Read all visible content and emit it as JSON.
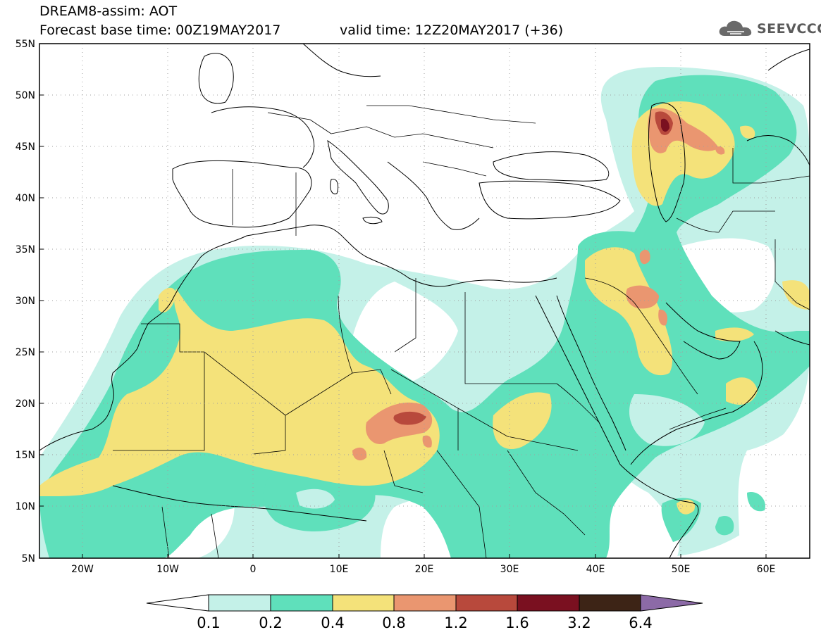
{
  "header": {
    "title_line1": "DREAM8-assim: AOT",
    "title_line2": "Forecast base time: 00Z19MAY2017",
    "valid_time": "valid time: 12Z20MAY2017 (+36)",
    "logo_text": "SEEVCCC",
    "logo_icon": "cloud-icon"
  },
  "map": {
    "variable": "AOT",
    "projection": "lat-lon",
    "lon_range": [
      -25,
      65
    ],
    "lat_range": [
      5,
      55
    ],
    "lat_labels": [
      "55N",
      "50N",
      "45N",
      "40N",
      "35N",
      "30N",
      "25N",
      "20N",
      "15N",
      "10N",
      "5N"
    ],
    "lon_labels": [
      "20W",
      "10W",
      "0",
      "10E",
      "20E",
      "30E",
      "40E",
      "50E",
      "60E"
    ],
    "grid": "dotted"
  },
  "colorbar": {
    "levels": [
      "0.1",
      "0.2",
      "0.4",
      "0.8",
      "1.2",
      "1.6",
      "3.2",
      "6.4"
    ],
    "colors": {
      "c1": "#c4f1e8",
      "c2": "#5fe0bb",
      "c3": "#f4e27a",
      "c4": "#ea9670",
      "c5": "#b8493c",
      "c6": "#7a1020",
      "c7": "#3d2416",
      "c8": "#8c6aa7"
    }
  }
}
